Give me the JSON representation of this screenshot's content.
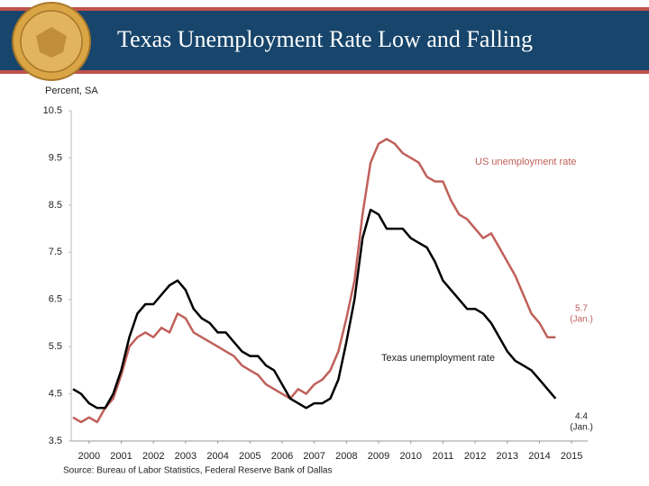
{
  "chart_data": {
    "type": "line",
    "title": "Texas Unemployment Rate Low and Falling",
    "y_label": "Percent, SA",
    "source": "Source: Bureau of Labor Statistics, Federal Reserve Bank of Dallas",
    "x": [
      2000,
      2000.25,
      2000.5,
      2000.75,
      2001,
      2001.25,
      2001.5,
      2001.75,
      2002,
      2002.25,
      2002.5,
      2002.75,
      2003,
      2003.25,
      2003.5,
      2003.75,
      2004,
      2004.25,
      2004.5,
      2004.75,
      2005,
      2005.25,
      2005.5,
      2005.75,
      2006,
      2006.25,
      2006.5,
      2006.75,
      2007,
      2007.25,
      2007.5,
      2007.75,
      2008,
      2008.25,
      2008.5,
      2008.75,
      2009,
      2009.25,
      2009.5,
      2009.75,
      2010,
      2010.25,
      2010.5,
      2010.75,
      2011,
      2011.25,
      2011.5,
      2011.75,
      2012,
      2012.25,
      2012.5,
      2012.75,
      2013,
      2013.25,
      2013.5,
      2013.75,
      2014,
      2014.25,
      2014.5,
      2014.75,
      2015
    ],
    "series": [
      {
        "name": "US unemployment rate",
        "color": "#c0605a",
        "end_note": "(Jan.)",
        "values": [
          4.0,
          3.9,
          4.0,
          3.9,
          4.2,
          4.4,
          4.9,
          5.5,
          5.7,
          5.8,
          5.7,
          5.9,
          5.8,
          6.2,
          6.1,
          5.8,
          5.7,
          5.6,
          5.5,
          5.4,
          5.3,
          5.1,
          5.0,
          4.9,
          4.7,
          4.6,
          4.5,
          4.4,
          4.6,
          4.5,
          4.7,
          4.8,
          5.0,
          5.4,
          6.1,
          6.9,
          8.3,
          9.4,
          9.8,
          9.9,
          9.8,
          9.6,
          9.5,
          9.4,
          9.1,
          9.0,
          9.0,
          8.6,
          8.3,
          8.2,
          8.0,
          7.8,
          7.9,
          7.6,
          7.3,
          7.0,
          6.6,
          6.2,
          6.0,
          5.7,
          5.7
        ]
      },
      {
        "name": "Texas unemployment rate",
        "color": "#000000",
        "end_note": "(Jan.)",
        "values": [
          4.6,
          4.5,
          4.3,
          4.2,
          4.2,
          4.5,
          5.0,
          5.7,
          6.2,
          6.4,
          6.4,
          6.6,
          6.8,
          6.9,
          6.7,
          6.3,
          6.1,
          6.0,
          5.8,
          5.8,
          5.6,
          5.4,
          5.3,
          5.3,
          5.1,
          5.0,
          4.7,
          4.4,
          4.3,
          4.2,
          4.3,
          4.3,
          4.4,
          4.8,
          5.6,
          6.5,
          7.8,
          8.4,
          8.3,
          8.0,
          8.0,
          8.0,
          7.8,
          7.7,
          7.6,
          7.3,
          6.9,
          6.7,
          6.5,
          6.3,
          6.3,
          6.2,
          6.0,
          5.7,
          5.4,
          5.2,
          5.1,
          5.0,
          4.8,
          4.6,
          4.4
        ]
      }
    ],
    "xlim": [
      2000,
      2016
    ],
    "xticks": [
      {
        "value": 2000.5,
        "label": "2000"
      },
      {
        "value": 2001.5,
        "label": "2001"
      },
      {
        "value": 2002.5,
        "label": "2002"
      },
      {
        "value": 2003.5,
        "label": "2003"
      },
      {
        "value": 2004.5,
        "label": "2004"
      },
      {
        "value": 2005.5,
        "label": "2005"
      },
      {
        "value": 2006.5,
        "label": "2006"
      },
      {
        "value": 2007.5,
        "label": "2007"
      },
      {
        "value": 2008.5,
        "label": "2008"
      },
      {
        "value": 2009.5,
        "label": "2009"
      },
      {
        "value": 2010.5,
        "label": "2010"
      },
      {
        "value": 2011.5,
        "label": "2011"
      },
      {
        "value": 2012.5,
        "label": "2012"
      },
      {
        "value": 2013.5,
        "label": "2013"
      },
      {
        "value": 2014.5,
        "label": "2014"
      },
      {
        "value": 2015.5,
        "label": "2015"
      }
    ],
    "ylim": [
      3.5,
      10.5
    ],
    "yticks": [
      3.5,
      4.5,
      5.5,
      6.5,
      7.5,
      8.5,
      9.5,
      10.5
    ],
    "grid": false
  }
}
